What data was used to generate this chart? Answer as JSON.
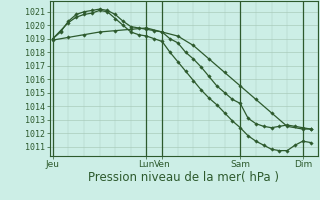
{
  "bg_color": "#cceee6",
  "grid_color": "#aaccbb",
  "line_color": "#2d5a2d",
  "xlabel": "Pression niveau de la mer( hPa )",
  "xlabel_fontsize": 8.5,
  "ytick_labels": [
    1011,
    1012,
    1013,
    1014,
    1015,
    1016,
    1017,
    1018,
    1019,
    1020,
    1021
  ],
  "ylim": [
    1010.3,
    1021.8
  ],
  "xtick_labels": [
    "Jeu",
    "Lun",
    "Ven",
    "Sam",
    "Dim"
  ],
  "xtick_positions": [
    0.0,
    3.0,
    3.5,
    6.0,
    8.0
  ],
  "xlim": [
    -0.1,
    8.5
  ],
  "series_x": [
    [
      0.0,
      0.25,
      0.5,
      0.75,
      1.0,
      1.25,
      1.5,
      1.75,
      2.0,
      2.25,
      2.5,
      2.75,
      3.0,
      3.25,
      3.5,
      3.75,
      4.0,
      4.25,
      4.5,
      4.75,
      5.0,
      5.25,
      5.5,
      5.75,
      6.0,
      6.25,
      6.5,
      6.75,
      7.0,
      7.25,
      7.5,
      7.75,
      8.0,
      8.25
    ],
    [
      0.0,
      0.25,
      0.5,
      0.75,
      1.0,
      1.25,
      1.5,
      1.75,
      2.0,
      2.25,
      2.5,
      2.75,
      3.0,
      3.25,
      3.5,
      3.75,
      4.0,
      4.25,
      4.5,
      4.75,
      5.0,
      5.25,
      5.5,
      5.75,
      6.0,
      6.25,
      6.5,
      6.75,
      7.0,
      7.25,
      7.5,
      7.75,
      8.0,
      8.25
    ],
    [
      0.0,
      0.5,
      1.0,
      1.5,
      2.0,
      2.5,
      3.0,
      3.5,
      4.0,
      4.5,
      5.0,
      5.5,
      6.0,
      6.5,
      7.0,
      7.5,
      8.0,
      8.25
    ]
  ],
  "series_y": [
    [
      1019.0,
      1019.5,
      1020.3,
      1020.8,
      1021.0,
      1021.1,
      1021.2,
      1021.1,
      1020.8,
      1020.3,
      1019.9,
      1019.8,
      1019.7,
      1019.6,
      1019.5,
      1019.0,
      1018.7,
      1018.0,
      1017.5,
      1016.9,
      1016.2,
      1015.5,
      1015.0,
      1014.5,
      1014.2,
      1013.1,
      1012.7,
      1012.5,
      1012.4,
      1012.5,
      1012.6,
      1012.5,
      1012.4,
      1012.3
    ],
    [
      1019.0,
      1019.6,
      1020.2,
      1020.6,
      1020.8,
      1020.9,
      1021.1,
      1021.0,
      1020.5,
      1020.0,
      1019.5,
      1019.3,
      1019.2,
      1019.0,
      1018.8,
      1018.0,
      1017.3,
      1016.6,
      1015.9,
      1015.2,
      1014.6,
      1014.1,
      1013.5,
      1012.9,
      1012.4,
      1011.8,
      1011.4,
      1011.1,
      1010.8,
      1010.7,
      1010.7,
      1011.1,
      1011.4,
      1011.3
    ],
    [
      1018.9,
      1019.1,
      1019.3,
      1019.5,
      1019.6,
      1019.7,
      1019.8,
      1019.5,
      1019.2,
      1018.5,
      1017.5,
      1016.5,
      1015.5,
      1014.5,
      1013.5,
      1012.5,
      1012.3,
      1012.3
    ]
  ]
}
